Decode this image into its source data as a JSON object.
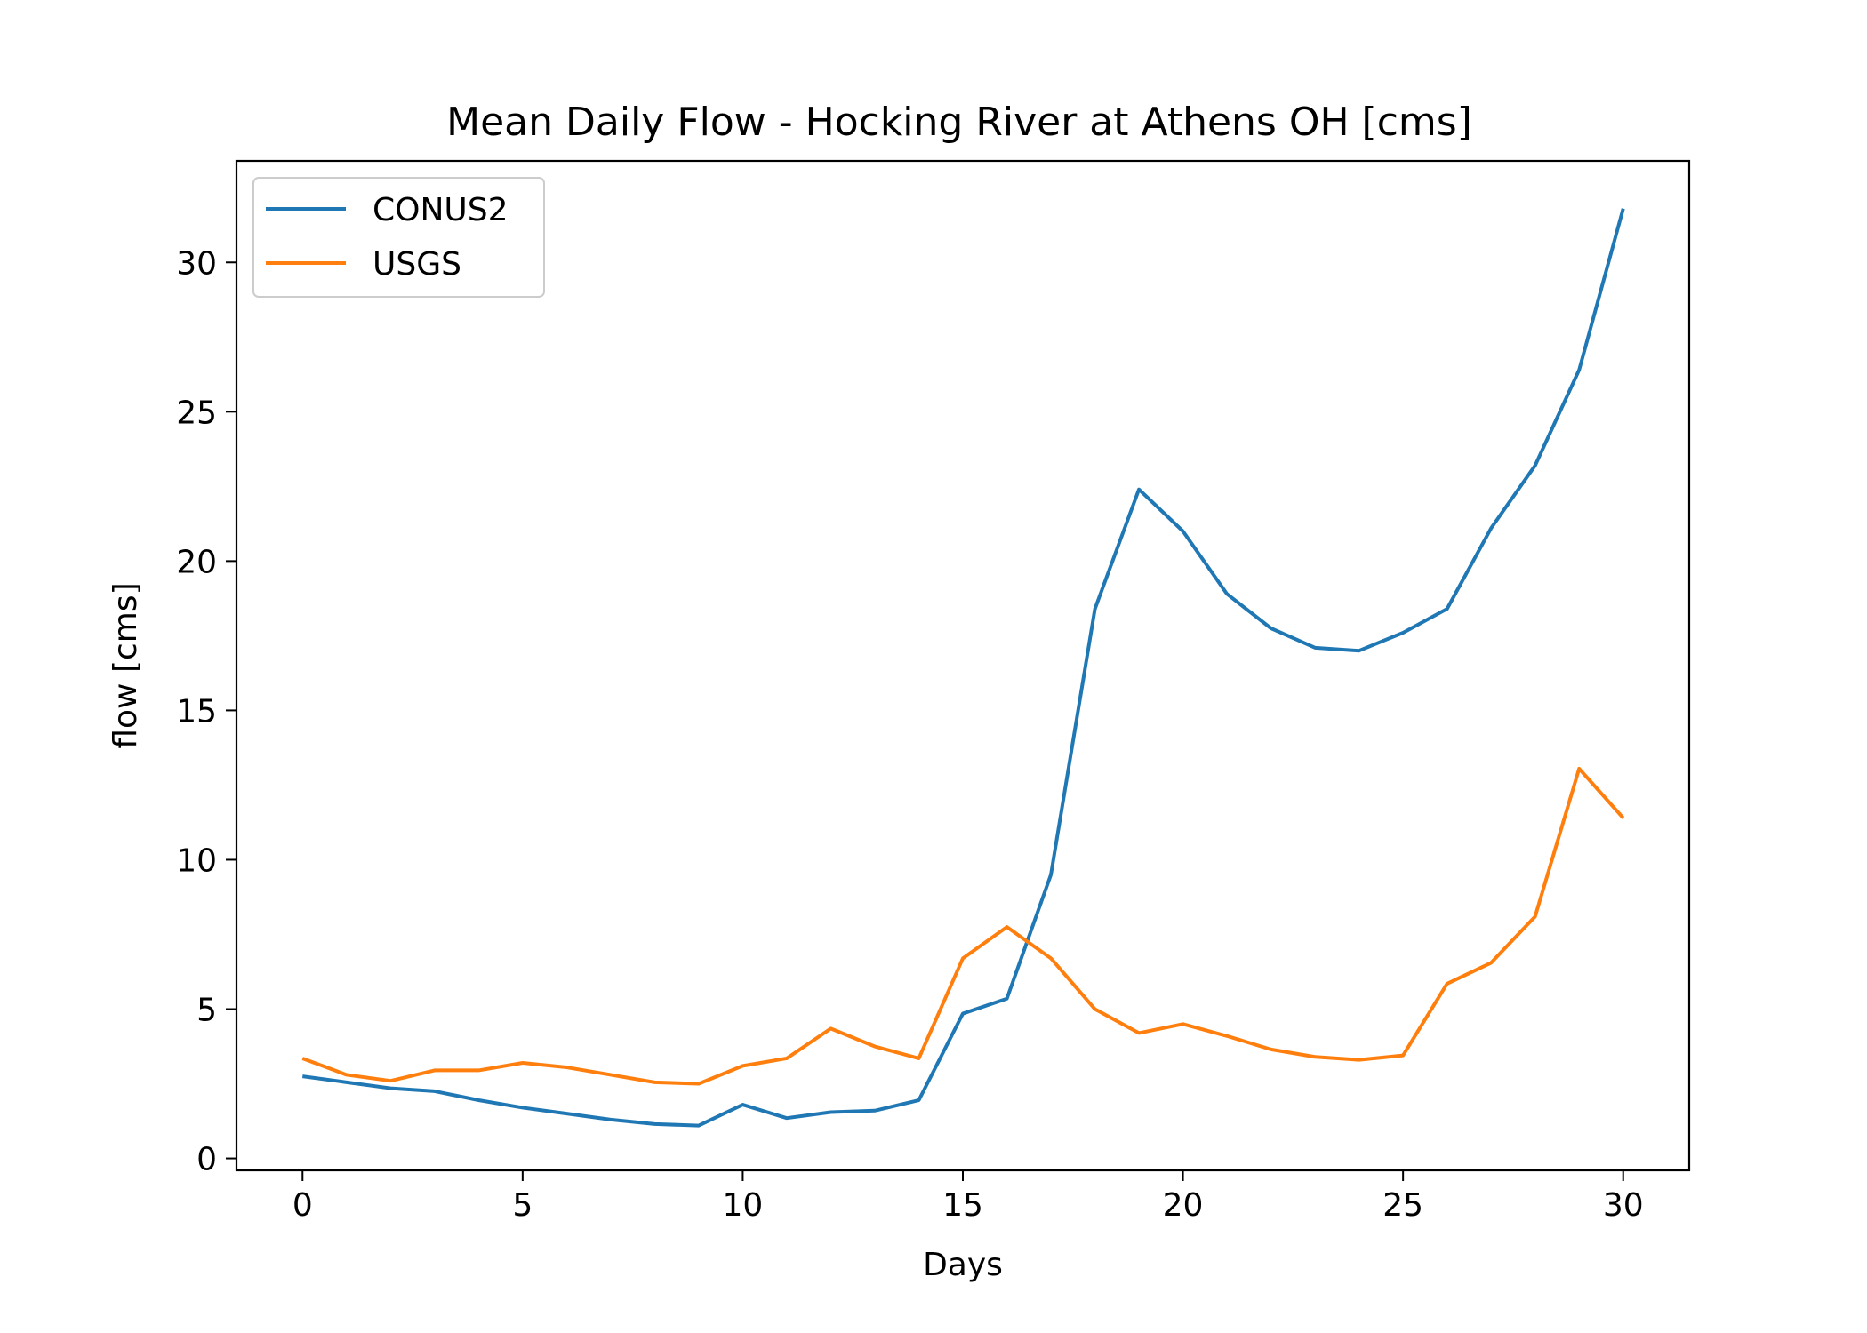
{
  "chart_data": {
    "type": "line",
    "title": "Mean Daily Flow - Hocking River at Athens OH [cms]",
    "xlabel": "Days",
    "ylabel": "flow [cms]",
    "xlim": [
      -1.5,
      31.5
    ],
    "ylim": [
      -0.4,
      33.4
    ],
    "xticks": [
      0,
      5,
      10,
      15,
      20,
      25,
      30
    ],
    "yticks": [
      0,
      5,
      10,
      15,
      20,
      25,
      30
    ],
    "grid": false,
    "legend_position": "top-left",
    "x": [
      0,
      1,
      2,
      3,
      4,
      5,
      6,
      7,
      8,
      9,
      10,
      11,
      12,
      13,
      14,
      15,
      16,
      17,
      18,
      19,
      20,
      21,
      22,
      23,
      24,
      25,
      26,
      27,
      28,
      29,
      30
    ],
    "series": [
      {
        "name": "CONUS2",
        "color": "#1f77b4",
        "values": [
          2.75,
          2.55,
          2.35,
          2.25,
          1.95,
          1.7,
          1.5,
          1.3,
          1.15,
          1.1,
          1.8,
          1.35,
          1.55,
          1.6,
          1.95,
          4.85,
          5.35,
          9.5,
          18.4,
          22.4,
          21.0,
          18.9,
          17.75,
          17.1,
          17.0,
          17.6,
          18.4,
          21.1,
          23.2,
          26.4,
          31.8
        ]
      },
      {
        "name": "USGS",
        "color": "#ff7f0e",
        "values": [
          3.35,
          2.8,
          2.6,
          2.95,
          2.95,
          3.2,
          3.05,
          2.8,
          2.55,
          2.5,
          3.1,
          3.35,
          4.35,
          3.75,
          3.35,
          6.7,
          7.75,
          6.7,
          5.0,
          4.2,
          4.5,
          4.1,
          3.65,
          3.4,
          3.3,
          3.45,
          5.85,
          6.55,
          8.1,
          13.05,
          11.4
        ]
      }
    ]
  }
}
